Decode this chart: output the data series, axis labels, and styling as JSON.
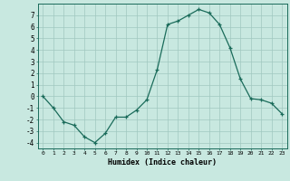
{
  "x": [
    0,
    1,
    2,
    3,
    4,
    5,
    6,
    7,
    8,
    9,
    10,
    11,
    12,
    13,
    14,
    15,
    16,
    17,
    18,
    19,
    20,
    21,
    22,
    23
  ],
  "y": [
    0.0,
    -1.0,
    -2.2,
    -2.5,
    -3.5,
    -4.0,
    -3.2,
    -1.8,
    -1.8,
    -1.2,
    -0.3,
    2.3,
    6.2,
    6.5,
    7.0,
    7.5,
    7.2,
    6.2,
    4.2,
    1.5,
    -0.2,
    -0.3,
    -0.6,
    -1.5
  ],
  "line_color": "#1a6b5a",
  "bg_color": "#c8e8e0",
  "grid_color": "#a0c8c0",
  "title": "",
  "xlabel": "Humidex (Indice chaleur)",
  "ylabel": "",
  "ylim": [
    -4.5,
    8.0
  ],
  "xlim": [
    -0.5,
    23.5
  ],
  "yticks": [
    -4,
    -3,
    -2,
    -1,
    0,
    1,
    2,
    3,
    4,
    5,
    6,
    7
  ],
  "xtick_labels": [
    "0",
    "1",
    "2",
    "3",
    "4",
    "5",
    "6",
    "7",
    "8",
    "9",
    "10",
    "11",
    "12",
    "13",
    "14",
    "15",
    "16",
    "17",
    "18",
    "19",
    "20",
    "21",
    "22",
    "23"
  ]
}
